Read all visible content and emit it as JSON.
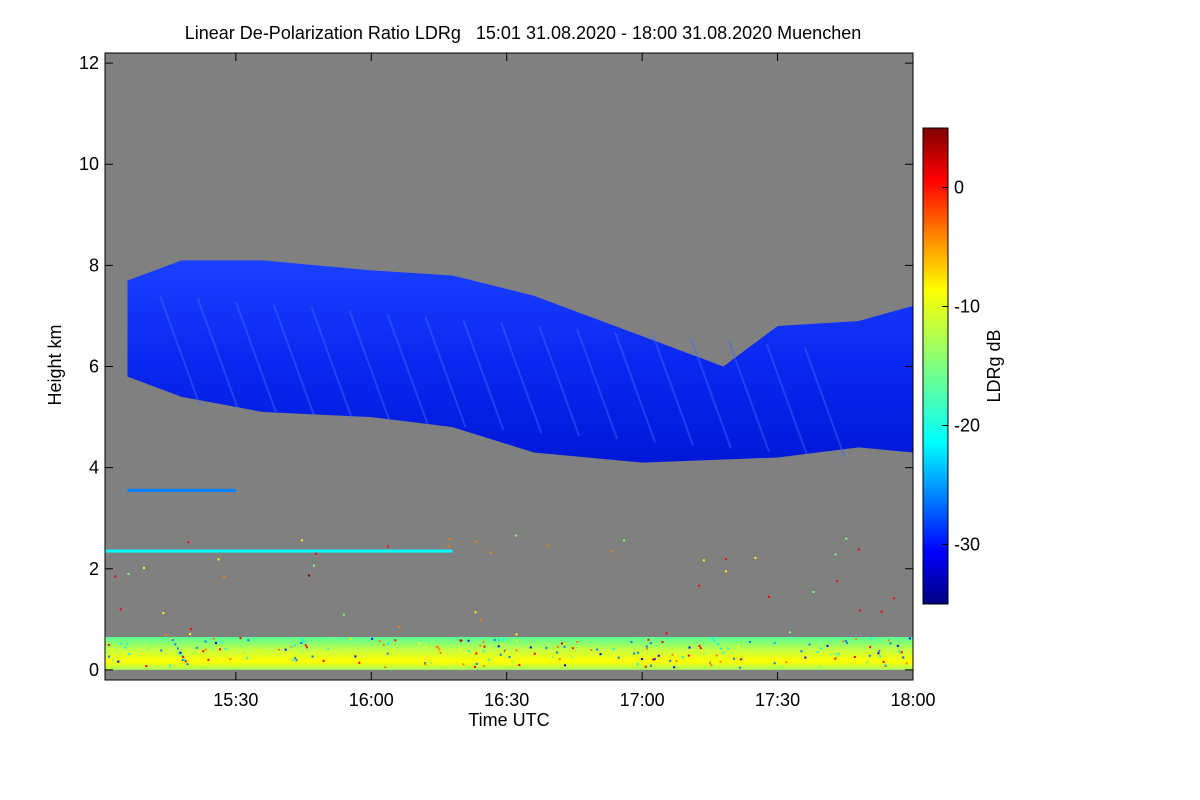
{
  "chart_data": {
    "type": "heatmap",
    "title": "Linear De-Polarization Ratio LDRg   15:01 31.08.2020 - 18:00 31.08.2020 Muenchen",
    "xlabel": "Time UTC",
    "ylabel": "Height km",
    "x_range_hours": [
      15.017,
      18.0
    ],
    "x_ticks": [
      {
        "label": "15:30",
        "value": 15.5
      },
      {
        "label": "16:00",
        "value": 16.0
      },
      {
        "label": "16:30",
        "value": 16.5
      },
      {
        "label": "17:00",
        "value": 17.0
      },
      {
        "label": "17:30",
        "value": 17.5
      },
      {
        "label": "18:00",
        "value": 18.0
      }
    ],
    "ylim": [
      -0.2,
      12.2
    ],
    "y_ticks": [
      {
        "label": "0",
        "value": 0
      },
      {
        "label": "2",
        "value": 2
      },
      {
        "label": "4",
        "value": 4
      },
      {
        "label": "6",
        "value": 6
      },
      {
        "label": "8",
        "value": 8
      },
      {
        "label": "10",
        "value": 10
      },
      {
        "label": "12",
        "value": 12
      }
    ],
    "background_color": "#808080",
    "colorbar": {
      "label": "LDRg dB",
      "range": [
        -35,
        5
      ],
      "ticks": [
        {
          "label": "0",
          "value": 0
        },
        {
          "label": "-10",
          "value": -10
        },
        {
          "label": "-20",
          "value": -20
        },
        {
          "label": "-30",
          "value": -30
        }
      ],
      "colormap": [
        "#00007f",
        "#0000ff",
        "#007fff",
        "#00ffff",
        "#7fff7f",
        "#ffff00",
        "#ff7f00",
        "#ff0000",
        "#7f0000"
      ]
    },
    "features": [
      {
        "name": "ice cloud layer",
        "ldr_db": -30,
        "base_km": [
          [
            15.1,
            5.8
          ],
          [
            15.3,
            5.4
          ],
          [
            15.6,
            5.1
          ],
          [
            16.0,
            5.0
          ],
          [
            16.3,
            4.8
          ],
          [
            16.6,
            4.3
          ],
          [
            17.0,
            4.1
          ],
          [
            17.5,
            4.2
          ],
          [
            17.8,
            4.4
          ],
          [
            18.0,
            4.3
          ]
        ],
        "top_km": [
          [
            15.1,
            7.7
          ],
          [
            15.3,
            8.1
          ],
          [
            15.6,
            8.1
          ],
          [
            16.0,
            7.9
          ],
          [
            16.3,
            7.8
          ],
          [
            16.6,
            7.4
          ],
          [
            17.0,
            6.6
          ],
          [
            17.3,
            6.0
          ],
          [
            17.5,
            6.8
          ],
          [
            17.8,
            6.9
          ],
          [
            18.0,
            7.2
          ]
        ]
      },
      {
        "name": "thin layer",
        "ldr_db": -22,
        "height_km": 2.35,
        "time_range": [
          15.017,
          16.3
        ]
      },
      {
        "name": "faint layer",
        "ldr_db": -25,
        "height_km": 3.55,
        "time_range": [
          15.1,
          15.5
        ]
      },
      {
        "name": "boundary layer",
        "ldr_db": -12,
        "height_km": [
          0.0,
          0.65
        ],
        "time_range": [
          15.017,
          18.0
        ]
      }
    ]
  }
}
